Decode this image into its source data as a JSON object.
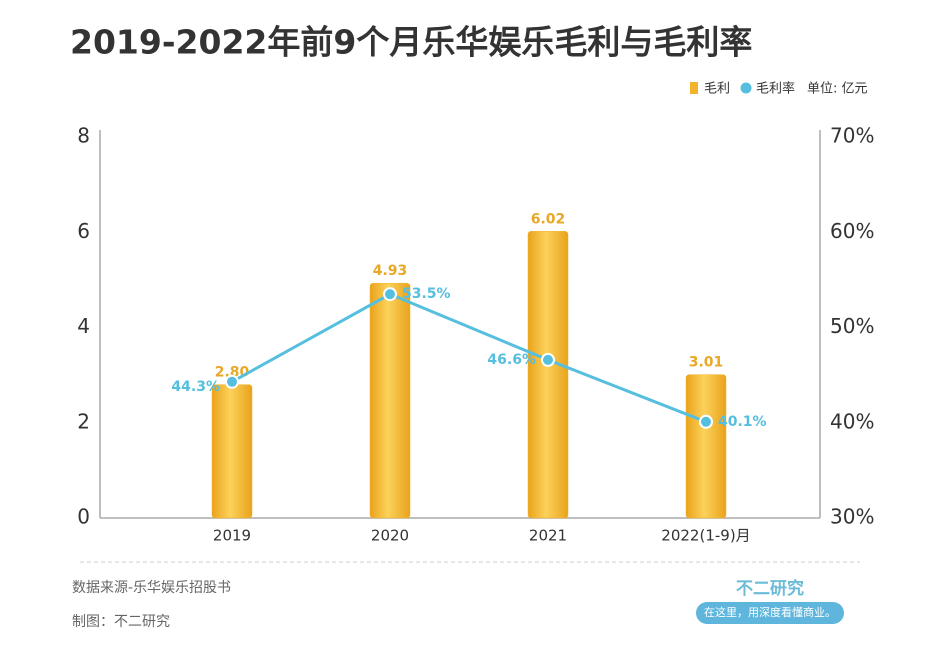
{
  "chart_data": {
    "type": "bar-line",
    "title": "2019-2022年前9个月乐华娱乐毛利与毛利率",
    "unit": "单位: 亿元",
    "categories": [
      "2019",
      "2020",
      "2021",
      "2022(1-9)月"
    ],
    "series": [
      {
        "name": "毛利",
        "color": "#f2b32a",
        "type": "bar",
        "values": [
          2.8,
          4.93,
          6.02,
          3.01
        ],
        "value_labels": [
          "2.80",
          "4.93",
          "6.02",
          "3.01"
        ]
      },
      {
        "name": "毛利率",
        "color": "#56bfdf",
        "type": "line",
        "axis": "y2",
        "values": [
          44.3,
          53.5,
          46.6,
          40.1
        ],
        "value_labels": [
          "44.3%",
          "53.5%",
          "46.6%",
          "40.1%"
        ]
      }
    ],
    "ylim": [
      0,
      8
    ],
    "yticks": [
      0,
      2,
      4,
      6,
      8
    ],
    "y2lim": [
      30,
      70
    ],
    "y2ticks": [
      {
        "value": 30,
        "label": "30%"
      },
      {
        "value": 40,
        "label": "40%"
      },
      {
        "value": 50,
        "label": "50%"
      },
      {
        "value": 60,
        "label": "60%"
      },
      {
        "value": 70,
        "label": "70%"
      }
    ],
    "legend": "top-right"
  },
  "footer": {
    "source": "数据来源-乐华娱乐招股书",
    "maker": "制图：不二研究",
    "logo": "不二研究",
    "slogan": "在这里，用深度看懂商业。"
  }
}
